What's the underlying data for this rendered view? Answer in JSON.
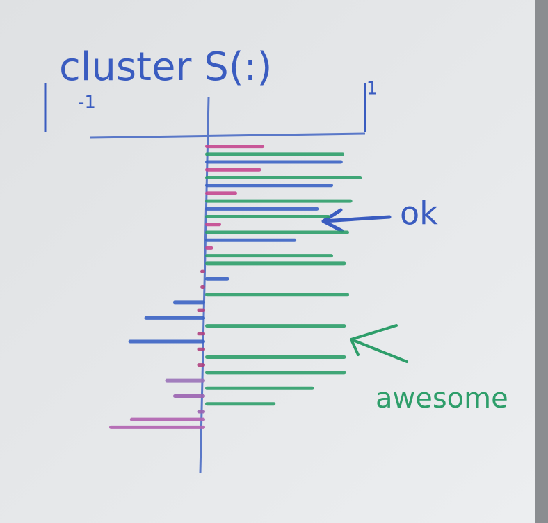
{
  "chart_data": {
    "type": "barh",
    "title": "cluster S(:)",
    "xlim": [
      -1,
      1
    ],
    "xticks": [
      -1,
      1
    ],
    "annotations": [
      "ok",
      "awesome"
    ],
    "values": [
      0.37,
      0.87,
      0.86,
      0.35,
      0.98,
      0.8,
      0.2,
      0.92,
      0.71,
      0.78,
      0.1,
      0.9,
      0.57,
      0.05,
      0.8,
      0.88,
      -0.03,
      0.15,
      -0.03,
      0.9,
      -0.2,
      -0.05,
      -0.38,
      0.88,
      -0.05,
      -0.48,
      -0.05,
      0.88,
      -0.05,
      0.88,
      -0.25,
      0.68,
      -0.2,
      0.44,
      -0.05,
      -0.47,
      -0.6
    ],
    "colors": [
      "#c4478f",
      "#2e9e6a",
      "#3b63c4",
      "#c4478f",
      "#2e9e6a",
      "#3b63c4",
      "#c4478f",
      "#2e9e6a",
      "#3b63c4",
      "#2e9e6a",
      "#c4478f",
      "#2e9e6a",
      "#3b63c4",
      "#c4478f",
      "#2e9e6a",
      "#2e9e6a",
      "#b0407f",
      "#3b63c4",
      "#b0407f",
      "#2e9e6a",
      "#3b63c4",
      "#b0407f",
      "#3b63c4",
      "#2e9e6a",
      "#b0407f",
      "#3b63c4",
      "#b0407f",
      "#2e9e6a",
      "#b0407f",
      "#2e9e6a",
      "#9a72b8",
      "#2e9e6a",
      "#9a62b0",
      "#2e9e6a",
      "#9a62b0",
      "#b062b0",
      "#b062b0"
    ]
  }
}
